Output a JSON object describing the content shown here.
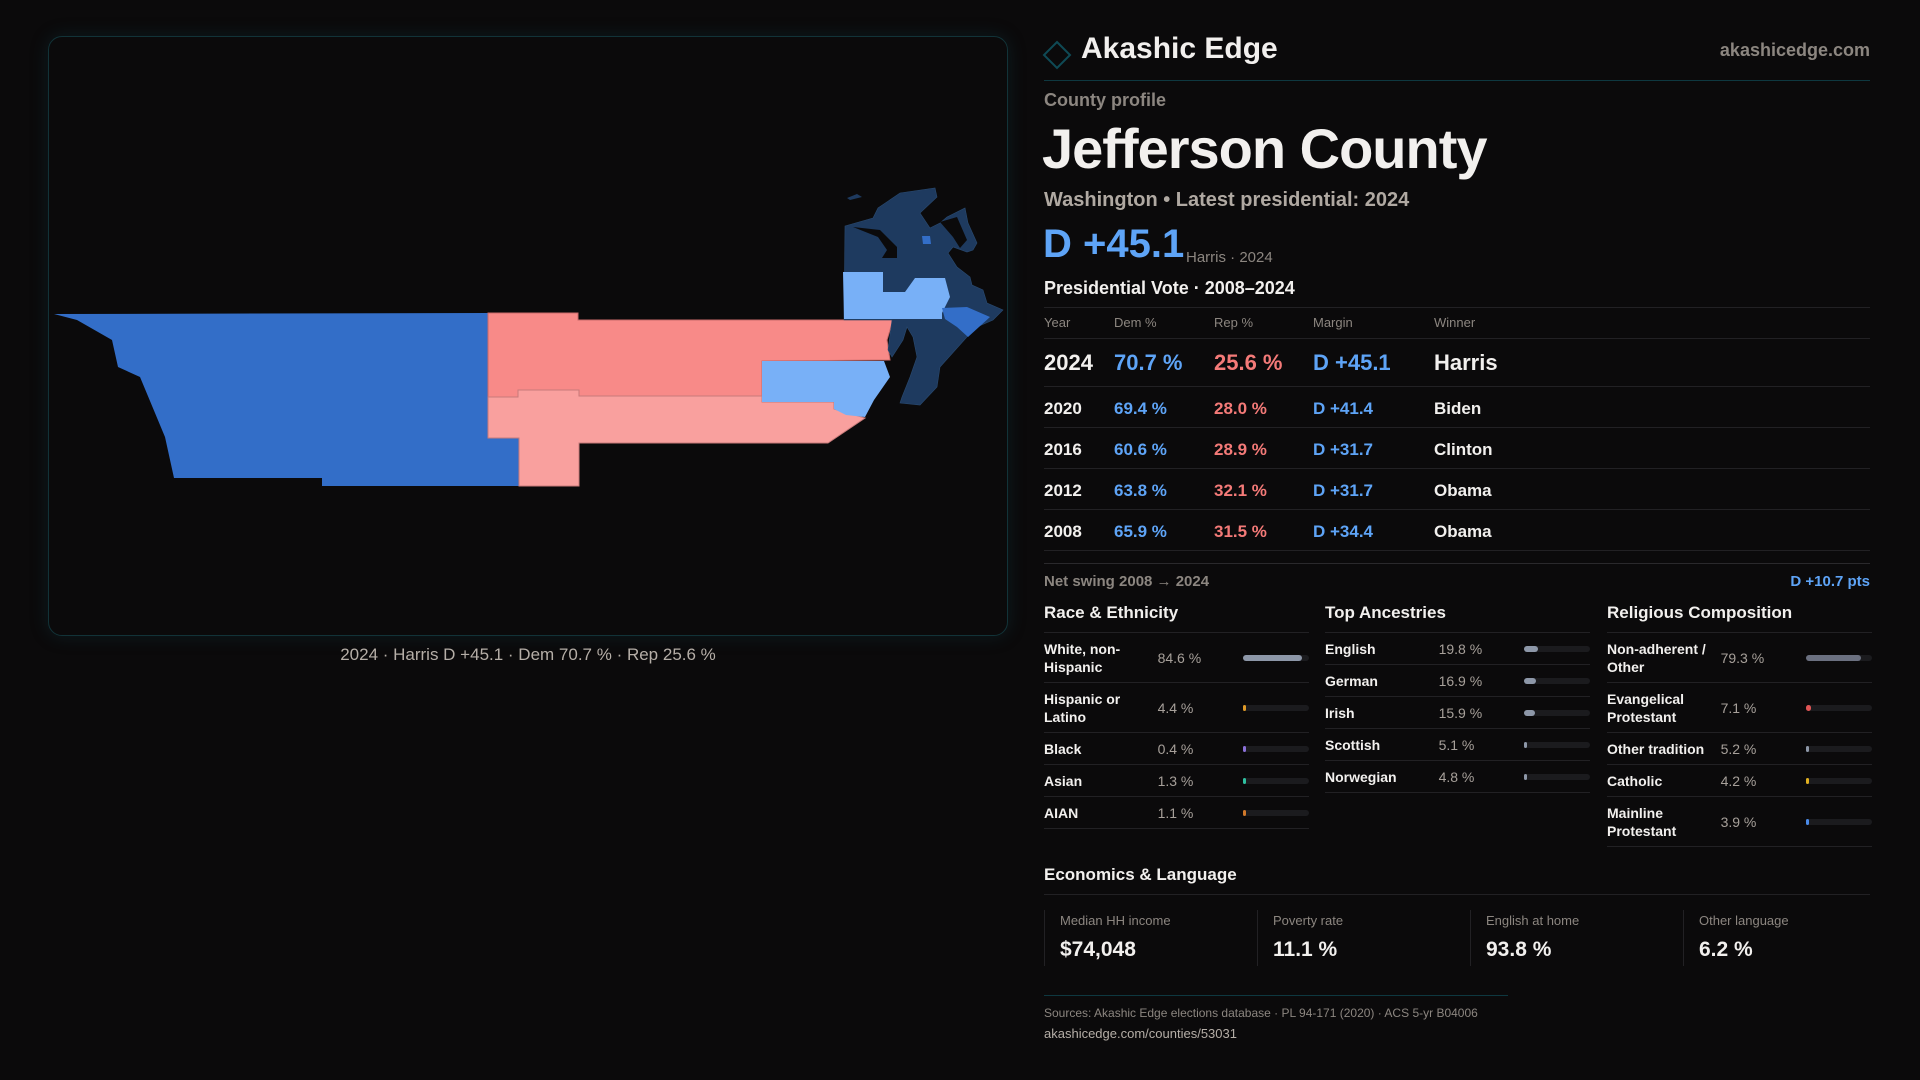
{
  "brand": {
    "name": "Akashic Edge",
    "site": "akashicedge.com"
  },
  "profile": {
    "eyebrow": "County profile",
    "title": "Jefferson County",
    "subtitle": "Washington • Latest presidential: 2024",
    "headline_margin": "D +45.1",
    "headline_note": "Harris · 2024"
  },
  "map": {
    "caption": "2024 · Harris D +45.1 · Dem 70.7 % · Rep 25.6 %",
    "colors": {
      "dem_strong": "#1e3a5f",
      "dem_mid": "#336ec8",
      "dem_light": "#78b0f7",
      "rep_mid": "#f88a88",
      "rep_light": "#f9a09e"
    }
  },
  "votes": {
    "title": "Presidential Vote · 2008–2024",
    "columns": [
      "Year",
      "Dem %",
      "Rep %",
      "Margin",
      "Winner"
    ],
    "rows": [
      {
        "year": "2024",
        "dem": "70.7 %",
        "rep": "25.6 %",
        "margin": "D +45.1",
        "winner": "Harris"
      },
      {
        "year": "2020",
        "dem": "69.4 %",
        "rep": "28.0 %",
        "margin": "D +41.4",
        "winner": "Biden"
      },
      {
        "year": "2016",
        "dem": "60.6 %",
        "rep": "28.9 %",
        "margin": "D +31.7",
        "winner": "Clinton"
      },
      {
        "year": "2012",
        "dem": "63.8 %",
        "rep": "32.1 %",
        "margin": "D +31.7",
        "winner": "Obama"
      },
      {
        "year": "2008",
        "dem": "65.9 %",
        "rep": "31.5 %",
        "margin": "D +34.4",
        "winner": "Obama"
      }
    ],
    "swing_label": "Net swing 2008 → 2024",
    "swing_value": "D +10.7 pts"
  },
  "sections": [
    {
      "title": "Race & Ethnicity",
      "items": [
        {
          "label": "White, non-Hispanic",
          "value": "84.6 %",
          "pct": 84.6,
          "color": "#8d97a8"
        },
        {
          "label": "Hispanic or Latino",
          "value": "4.4 %",
          "pct": 4.4,
          "color": "#e09a28"
        },
        {
          "label": "Black",
          "value": "0.4 %",
          "pct": 0.4,
          "color": "#8a70d8"
        },
        {
          "label": "Asian",
          "value": "1.3 %",
          "pct": 1.3,
          "color": "#2fc0a0"
        },
        {
          "label": "AIAN",
          "value": "1.1 %",
          "pct": 1.1,
          "color": "#d0782a"
        }
      ]
    },
    {
      "title": "Top Ancestries",
      "items": [
        {
          "label": "English",
          "value": "19.8 %",
          "pct": 19.8,
          "color": "#8d97a8"
        },
        {
          "label": "German",
          "value": "16.9 %",
          "pct": 16.9,
          "color": "#8d97a8"
        },
        {
          "label": "Irish",
          "value": "15.9 %",
          "pct": 15.9,
          "color": "#8d97a8"
        },
        {
          "label": "Scottish",
          "value": "5.1 %",
          "pct": 5.1,
          "color": "#8d97a8"
        },
        {
          "label": "Norwegian",
          "value": "4.8 %",
          "pct": 4.8,
          "color": "#8d97a8"
        }
      ]
    },
    {
      "title": "Religious Composition",
      "items": [
        {
          "label": "Non-adherent / Other",
          "value": "79.3 %",
          "pct": 79.3,
          "color": "#6b7080"
        },
        {
          "label": "Evangelical Protestant",
          "value": "7.1 %",
          "pct": 7.1,
          "color": "#e05555"
        },
        {
          "label": "Other tradition",
          "value": "5.2 %",
          "pct": 5.2,
          "color": "#8d97a8"
        },
        {
          "label": "Catholic",
          "value": "4.2 %",
          "pct": 4.2,
          "color": "#e0b020"
        },
        {
          "label": "Mainline Protestant",
          "value": "3.9 %",
          "pct": 3.9,
          "color": "#4a8ae8"
        }
      ]
    }
  ],
  "economics": {
    "title": "Economics & Language",
    "stats": [
      {
        "label": "Median HH income",
        "value": "$74,048"
      },
      {
        "label": "Poverty rate",
        "value": "11.1 %"
      },
      {
        "label": "English at home",
        "value": "93.8 %"
      },
      {
        "label": "Other language",
        "value": "6.2 %"
      }
    ]
  },
  "footer": {
    "sources": "Sources: Akashic Edge elections database · PL 94-171 (2020) · ACS 5-yr B04006",
    "url": "akashicedge.com/counties/53031"
  }
}
